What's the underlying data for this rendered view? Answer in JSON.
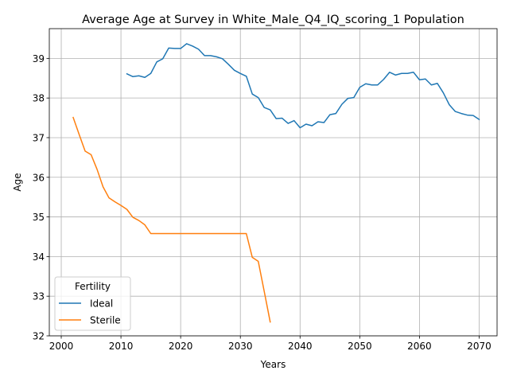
{
  "chart_data": {
    "type": "line",
    "title": "Average Age at Survey in White_Male_Q4_IQ_scoring_1 Population",
    "xlabel": "Years",
    "ylabel": "Age",
    "xlim": [
      1998,
      2073
    ],
    "ylim": [
      32,
      39.75
    ],
    "xticks": [
      2000,
      2010,
      2020,
      2030,
      2040,
      2050,
      2060,
      2070
    ],
    "yticks": [
      32,
      33,
      34,
      35,
      36,
      37,
      38,
      39
    ],
    "grid": true,
    "legend": {
      "title": "Fertility",
      "placement": "lower-left"
    },
    "series": [
      {
        "name": "Ideal",
        "color": "#1f77b4",
        "x": [
          2011,
          2012,
          2013,
          2014,
          2015,
          2016,
          2017,
          2018,
          2019,
          2020,
          2021,
          2022,
          2023,
          2024,
          2025,
          2026,
          2027,
          2028,
          2029,
          2030,
          2031,
          2032,
          2033,
          2034,
          2035,
          2036,
          2037,
          2038,
          2039,
          2040,
          2041,
          2042,
          2043,
          2044,
          2045,
          2046,
          2047,
          2048,
          2049,
          2050,
          2051,
          2052,
          2053,
          2054,
          2055,
          2056,
          2057,
          2058,
          2059,
          2060,
          2061,
          2062,
          2063,
          2064,
          2065,
          2066,
          2067,
          2068,
          2069,
          2070
        ],
        "y": [
          38.61,
          38.54,
          38.56,
          38.52,
          38.62,
          38.91,
          38.99,
          39.26,
          39.25,
          39.25,
          39.37,
          39.31,
          39.23,
          39.07,
          39.07,
          39.04,
          38.99,
          38.85,
          38.7,
          38.62,
          38.55,
          38.1,
          38.01,
          37.76,
          37.7,
          37.48,
          37.49,
          37.36,
          37.43,
          37.25,
          37.34,
          37.3,
          37.4,
          37.38,
          37.58,
          37.61,
          37.84,
          37.99,
          38.01,
          38.27,
          38.36,
          38.33,
          38.33,
          38.47,
          38.65,
          38.58,
          38.62,
          38.62,
          38.65,
          38.46,
          38.48,
          38.33,
          38.37,
          38.13,
          37.83,
          37.66,
          37.61,
          37.57,
          37.56,
          37.46
        ]
      },
      {
        "name": "Sterile",
        "color": "#ff7f0e",
        "x": [
          2002,
          2003,
          2004,
          2005,
          2006,
          2007,
          2008,
          2009,
          2010,
          2011,
          2012,
          2013,
          2014,
          2015,
          2016,
          2017,
          2018,
          2019,
          2020,
          2021,
          2022,
          2023,
          2024,
          2025,
          2026,
          2027,
          2028,
          2029,
          2030,
          2031,
          2032,
          2033,
          2034,
          2035
        ],
        "y": [
          37.51,
          37.08,
          36.66,
          36.57,
          36.2,
          35.76,
          35.48,
          35.38,
          35.29,
          35.19,
          34.99,
          34.91,
          34.8,
          34.58,
          34.58,
          34.58,
          34.58,
          34.58,
          34.58,
          34.58,
          34.58,
          34.58,
          34.58,
          34.58,
          34.58,
          34.58,
          34.58,
          34.58,
          34.58,
          34.58,
          33.98,
          33.88,
          33.12,
          32.35
        ]
      }
    ]
  }
}
